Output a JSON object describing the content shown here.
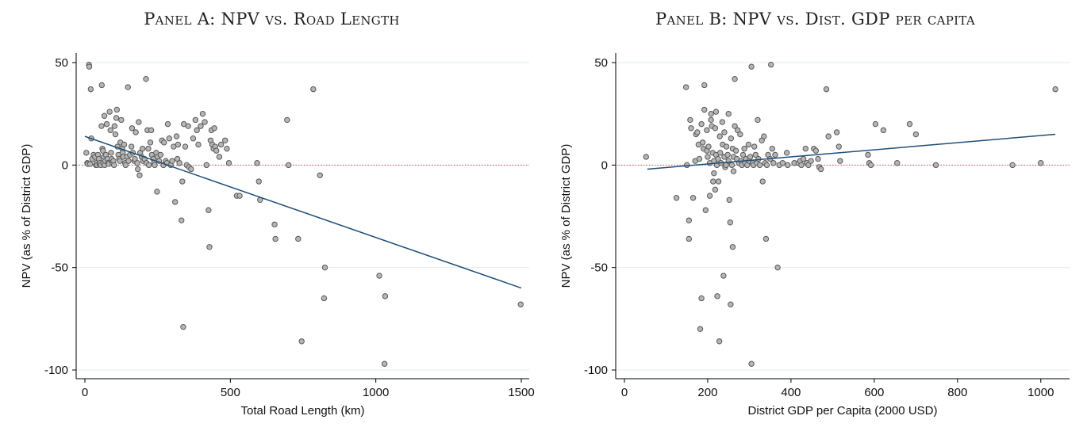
{
  "chart_data": [
    {
      "type": "scatter",
      "title": "Panel A: NPV vs. Road Length",
      "xlabel": "Total Road Length (km)",
      "ylabel": "NPV (as % of District GDP)",
      "xlim": [
        0,
        1500
      ],
      "ylim": [
        -100,
        50
      ],
      "xticks": [
        "0",
        "500",
        "1000",
        "1500"
      ],
      "yticks": [
        "-100",
        "-50",
        "0",
        "50"
      ],
      "grid": "horizontal",
      "reference_line": {
        "y": 0,
        "style": "dotted",
        "color": "#d9534f"
      },
      "fit_line": {
        "x": [
          0,
          1500
        ],
        "y": [
          14,
          -60
        ],
        "color": "#1f4e79"
      },
      "point_color": "#b5b5b5",
      "points": [
        [
          5,
          6
        ],
        [
          8,
          1
        ],
        [
          10,
          0.5
        ],
        [
          14,
          49
        ],
        [
          15,
          48
        ],
        [
          18,
          0.5
        ],
        [
          20,
          37
        ],
        [
          22,
          13
        ],
        [
          25,
          3
        ],
        [
          30,
          5
        ],
        [
          35,
          4
        ],
        [
          38,
          0
        ],
        [
          40,
          1
        ],
        [
          42,
          0
        ],
        [
          45,
          5
        ],
        [
          48,
          3
        ],
        [
          50,
          0.5
        ],
        [
          52,
          1
        ],
        [
          55,
          0
        ],
        [
          57,
          19
        ],
        [
          58,
          39
        ],
        [
          60,
          8
        ],
        [
          62,
          7
        ],
        [
          63,
          1
        ],
        [
          65,
          4
        ],
        [
          67,
          24
        ],
        [
          68,
          0
        ],
        [
          70,
          2
        ],
        [
          72,
          5
        ],
        [
          75,
          20
        ],
        [
          78,
          3
        ],
        [
          80,
          1
        ],
        [
          82,
          0.5
        ],
        [
          85,
          26
        ],
        [
          88,
          17
        ],
        [
          90,
          6
        ],
        [
          92,
          3
        ],
        [
          95,
          1
        ],
        [
          98,
          2
        ],
        [
          100,
          0
        ],
        [
          102,
          19
        ],
        [
          105,
          15
        ],
        [
          108,
          23
        ],
        [
          110,
          27
        ],
        [
          112,
          9
        ],
        [
          115,
          5
        ],
        [
          118,
          3
        ],
        [
          120,
          2
        ],
        [
          122,
          11
        ],
        [
          125,
          22
        ],
        [
          128,
          8
        ],
        [
          130,
          6
        ],
        [
          132,
          4
        ],
        [
          135,
          10
        ],
        [
          138,
          1
        ],
        [
          140,
          0
        ],
        [
          145,
          4
        ],
        [
          148,
          38
        ],
        [
          150,
          2
        ],
        [
          155,
          5
        ],
        [
          160,
          9
        ],
        [
          162,
          18
        ],
        [
          165,
          6
        ],
        [
          170,
          2
        ],
        [
          172,
          3
        ],
        [
          175,
          16
        ],
        [
          180,
          1
        ],
        [
          182,
          -2
        ],
        [
          185,
          21
        ],
        [
          188,
          -5
        ],
        [
          190,
          6
        ],
        [
          195,
          4
        ],
        [
          198,
          8
        ],
        [
          200,
          2
        ],
        [
          205,
          3
        ],
        [
          210,
          42
        ],
        [
          212,
          1
        ],
        [
          215,
          17
        ],
        [
          218,
          8
        ],
        [
          220,
          0
        ],
        [
          225,
          11
        ],
        [
          228,
          17
        ],
        [
          230,
          5
        ],
        [
          235,
          3
        ],
        [
          238,
          1
        ],
        [
          240,
          0
        ],
        [
          245,
          6
        ],
        [
          248,
          -13
        ],
        [
          250,
          4
        ],
        [
          255,
          2
        ],
        [
          260,
          5
        ],
        [
          265,
          12
        ],
        [
          270,
          0
        ],
        [
          272,
          11
        ],
        [
          278,
          2
        ],
        [
          282,
          1
        ],
        [
          285,
          20
        ],
        [
          290,
          13
        ],
        [
          295,
          0
        ],
        [
          300,
          2
        ],
        [
          305,
          9
        ],
        [
          310,
          -18
        ],
        [
          315,
          14
        ],
        [
          318,
          3
        ],
        [
          320,
          10
        ],
        [
          325,
          1
        ],
        [
          332,
          -27
        ],
        [
          335,
          -8
        ],
        [
          338,
          -79
        ],
        [
          340,
          20
        ],
        [
          345,
          9
        ],
        [
          350,
          0
        ],
        [
          355,
          19
        ],
        [
          358,
          -1
        ],
        [
          365,
          -2
        ],
        [
          372,
          13
        ],
        [
          380,
          22
        ],
        [
          385,
          17
        ],
        [
          390,
          10
        ],
        [
          398,
          19
        ],
        [
          405,
          25
        ],
        [
          412,
          21
        ],
        [
          418,
          0
        ],
        [
          425,
          -22
        ],
        [
          428,
          -40
        ],
        [
          432,
          12
        ],
        [
          435,
          17
        ],
        [
          438,
          10
        ],
        [
          442,
          8
        ],
        [
          445,
          18
        ],
        [
          448,
          9
        ],
        [
          452,
          7
        ],
        [
          462,
          4
        ],
        [
          468,
          10
        ],
        [
          482,
          12
        ],
        [
          488,
          8
        ],
        [
          495,
          1
        ],
        [
          522,
          -15
        ],
        [
          532,
          -15
        ],
        [
          592,
          1
        ],
        [
          598,
          -8
        ],
        [
          602,
          -17
        ],
        [
          652,
          -29
        ],
        [
          655,
          -36
        ],
        [
          695,
          22
        ],
        [
          700,
          0
        ],
        [
          733,
          -36
        ],
        [
          745,
          -86
        ],
        [
          785,
          37
        ],
        [
          808,
          -5
        ],
        [
          825,
          -50
        ],
        [
          822,
          -65
        ],
        [
          1012,
          -54
        ],
        [
          1030,
          -97
        ],
        [
          1032,
          -64
        ],
        [
          1498,
          -68
        ]
      ]
    },
    {
      "type": "scatter",
      "title": "Panel B: NPV vs. Dist. GDP per capita",
      "xlabel": "District GDP per Capita (2000 USD)",
      "ylabel": "NPV (as % of District GDP)",
      "xlim": [
        0,
        1050
      ],
      "ylim": [
        -100,
        50
      ],
      "xticks": [
        "0",
        "200",
        "400",
        "600",
        "800",
        "1000"
      ],
      "yticks": [
        "-100",
        "-50",
        "0",
        "50"
      ],
      "grid": "horizontal",
      "reference_line": {
        "y": 0,
        "style": "dotted",
        "color": "#d9534f"
      },
      "fit_line": {
        "x": [
          55,
          1035
        ],
        "y": [
          -2,
          15
        ],
        "color": "#1f4e79"
      },
      "point_color": "#b5b5b5",
      "points": [
        [
          52,
          4
        ],
        [
          125,
          -16
        ],
        [
          148,
          38
        ],
        [
          150,
          0
        ],
        [
          155,
          -27
        ],
        [
          155,
          -36
        ],
        [
          158,
          22
        ],
        [
          160,
          18
        ],
        [
          165,
          -16
        ],
        [
          170,
          2
        ],
        [
          172,
          15
        ],
        [
          175,
          16
        ],
        [
          178,
          10
        ],
        [
          180,
          3
        ],
        [
          182,
          -80
        ],
        [
          185,
          20
        ],
        [
          185,
          -65
        ],
        [
          188,
          11
        ],
        [
          190,
          8
        ],
        [
          192,
          27
        ],
        [
          192,
          39
        ],
        [
          195,
          -22
        ],
        [
          198,
          7
        ],
        [
          198,
          17
        ],
        [
          200,
          4
        ],
        [
          202,
          9
        ],
        [
          205,
          1
        ],
        [
          205,
          -15
        ],
        [
          208,
          25
        ],
        [
          208,
          22
        ],
        [
          210,
          19
        ],
        [
          212,
          6
        ],
        [
          213,
          -8
        ],
        [
          215,
          2
        ],
        [
          215,
          -4
        ],
        [
          218,
          18
        ],
        [
          218,
          -12
        ],
        [
          220,
          26
        ],
        [
          220,
          5
        ],
        [
          222,
          0
        ],
        [
          223,
          -64
        ],
        [
          225,
          3
        ],
        [
          226,
          -8
        ],
        [
          228,
          -86
        ],
        [
          229,
          14
        ],
        [
          230,
          6
        ],
        [
          232,
          1
        ],
        [
          235,
          21
        ],
        [
          236,
          10
        ],
        [
          238,
          -54
        ],
        [
          240,
          4
        ],
        [
          240,
          16
        ],
        [
          242,
          -1
        ],
        [
          244,
          0
        ],
        [
          245,
          9
        ],
        [
          248,
          5
        ],
        [
          250,
          25
        ],
        [
          250,
          2
        ],
        [
          252,
          -17
        ],
        [
          254,
          -28
        ],
        [
          255,
          -68
        ],
        [
          256,
          13
        ],
        [
          258,
          0
        ],
        [
          260,
          -40
        ],
        [
          260,
          8
        ],
        [
          262,
          4
        ],
        [
          262,
          -3
        ],
        [
          265,
          19
        ],
        [
          265,
          42
        ],
        [
          268,
          7
        ],
        [
          270,
          3
        ],
        [
          272,
          17
        ],
        [
          275,
          1
        ],
        [
          278,
          15
        ],
        [
          280,
          2
        ],
        [
          282,
          0
        ],
        [
          285,
          5
        ],
        [
          288,
          8
        ],
        [
          290,
          1
        ],
        [
          292,
          3
        ],
        [
          295,
          0
        ],
        [
          298,
          10
        ],
        [
          300,
          2
        ],
        [
          302,
          4
        ],
        [
          305,
          -97
        ],
        [
          305,
          48
        ],
        [
          308,
          1
        ],
        [
          310,
          0
        ],
        [
          312,
          9
        ],
        [
          315,
          5
        ],
        [
          318,
          1
        ],
        [
          320,
          22
        ],
        [
          322,
          3
        ],
        [
          325,
          0
        ],
        [
          330,
          12
        ],
        [
          332,
          -8
        ],
        [
          335,
          14
        ],
        [
          338,
          1
        ],
        [
          340,
          -36
        ],
        [
          342,
          0
        ],
        [
          345,
          5
        ],
        [
          350,
          3
        ],
        [
          352,
          49
        ],
        [
          355,
          8
        ],
        [
          358,
          1
        ],
        [
          362,
          5
        ],
        [
          368,
          -50
        ],
        [
          372,
          0
        ],
        [
          380,
          1
        ],
        [
          390,
          6
        ],
        [
          392,
          0
        ],
        [
          408,
          1
        ],
        [
          418,
          1
        ],
        [
          422,
          2
        ],
        [
          425,
          0
        ],
        [
          430,
          3
        ],
        [
          435,
          8
        ],
        [
          438,
          1
        ],
        [
          442,
          0
        ],
        [
          448,
          2
        ],
        [
          455,
          8
        ],
        [
          460,
          7
        ],
        [
          465,
          3
        ],
        [
          468,
          -1
        ],
        [
          472,
          -2
        ],
        [
          485,
          37
        ],
        [
          490,
          14
        ],
        [
          510,
          16
        ],
        [
          515,
          9
        ],
        [
          518,
          2
        ],
        [
          585,
          5
        ],
        [
          588,
          1
        ],
        [
          592,
          0
        ],
        [
          603,
          20
        ],
        [
          622,
          17
        ],
        [
          655,
          1
        ],
        [
          685,
          20
        ],
        [
          700,
          15
        ],
        [
          748,
          0
        ],
        [
          932,
          0
        ],
        [
          1000,
          1
        ],
        [
          1035,
          37
        ]
      ]
    }
  ]
}
